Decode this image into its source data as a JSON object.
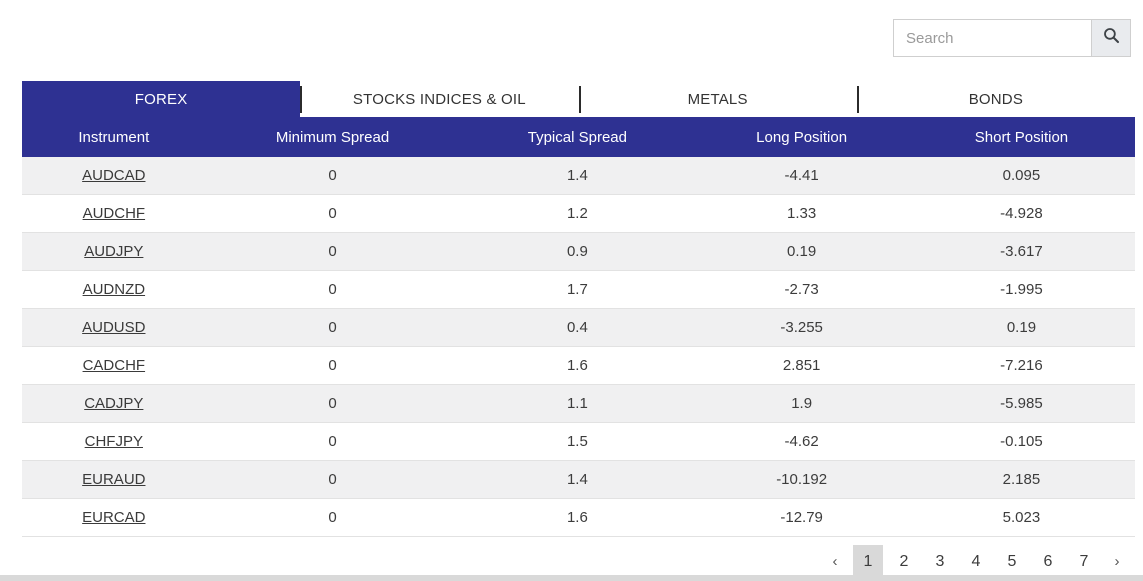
{
  "search": {
    "placeholder": "Search",
    "icon": "magnifier-icon"
  },
  "tabs": [
    {
      "label": "FOREX",
      "active": true
    },
    {
      "label": "STOCKS INDICES & OIL",
      "active": false
    },
    {
      "label": "METALS",
      "active": false
    },
    {
      "label": "BONDS",
      "active": false
    }
  ],
  "table": {
    "columns": [
      "Instrument",
      "Minimum Spread",
      "Typical Spread",
      "Long Position",
      "Short Position"
    ],
    "rows": [
      {
        "instrument": "AUDCAD",
        "minimum_spread": "0",
        "typical_spread": "1.4",
        "long_position": "-4.41",
        "short_position": "0.095"
      },
      {
        "instrument": "AUDCHF",
        "minimum_spread": "0",
        "typical_spread": "1.2",
        "long_position": "1.33",
        "short_position": "-4.928"
      },
      {
        "instrument": "AUDJPY",
        "minimum_spread": "0",
        "typical_spread": "0.9",
        "long_position": "0.19",
        "short_position": "-3.617"
      },
      {
        "instrument": "AUDNZD",
        "minimum_spread": "0",
        "typical_spread": "1.7",
        "long_position": "-2.73",
        "short_position": "-1.995"
      },
      {
        "instrument": "AUDUSD",
        "minimum_spread": "0",
        "typical_spread": "0.4",
        "long_position": "-3.255",
        "short_position": "0.19"
      },
      {
        "instrument": "CADCHF",
        "minimum_spread": "0",
        "typical_spread": "1.6",
        "long_position": "2.851",
        "short_position": "-7.216"
      },
      {
        "instrument": "CADJPY",
        "minimum_spread": "0",
        "typical_spread": "1.1",
        "long_position": "1.9",
        "short_position": "-5.985"
      },
      {
        "instrument": "CHFJPY",
        "minimum_spread": "0",
        "typical_spread": "1.5",
        "long_position": "-4.62",
        "short_position": "-0.105"
      },
      {
        "instrument": "EURAUD",
        "minimum_spread": "0",
        "typical_spread": "1.4",
        "long_position": "-10.192",
        "short_position": "2.185"
      },
      {
        "instrument": "EURCAD",
        "minimum_spread": "0",
        "typical_spread": "1.6",
        "long_position": "-12.79",
        "short_position": "5.023"
      }
    ]
  },
  "pagination": {
    "prev_label": "‹",
    "next_label": "›",
    "pages": [
      "1",
      "2",
      "3",
      "4",
      "5",
      "6",
      "7"
    ],
    "active_page": "1"
  },
  "colors": {
    "accent": "#2e3192",
    "row_alt": "#f0f0f1",
    "active_page_bg": "#d9d9d9"
  }
}
